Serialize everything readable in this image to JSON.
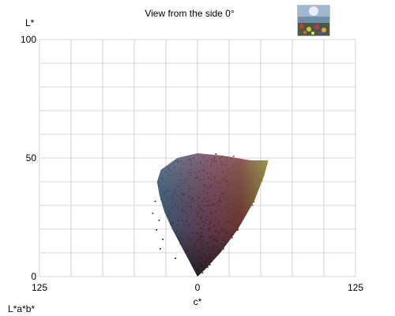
{
  "header": {
    "title": "View from the side 0°",
    "thumbnail_icon": "flower-field-photo-thumbnail"
  },
  "footer": {
    "color_space_label": "L*a*b*"
  },
  "chart_data": {
    "type": "scatter",
    "title": "View from the side 0°",
    "xlabel": "c*",
    "ylabel": "L*",
    "x_tick_labels": [
      "125",
      "0",
      "125"
    ],
    "y_tick_labels": [
      "100",
      "50",
      "0"
    ],
    "xlim": [
      -125,
      125
    ],
    "ylim": [
      0,
      100
    ],
    "grid": true,
    "colors": {
      "grid": "#d4d4d4",
      "blue_tone": "#3d5f7c",
      "red_tone": "#7e2a35",
      "olive_tone": "#7d7c2a",
      "dark_tone": "#201d22"
    },
    "series": [
      {
        "region": "gamut cloud outline",
        "points": [
          [
            0,
            0
          ],
          [
            -3,
            3
          ],
          [
            -10,
            10
          ],
          [
            -20,
            20
          ],
          [
            -26,
            27
          ],
          [
            -30,
            34
          ],
          [
            -32,
            40
          ],
          [
            -29,
            45
          ],
          [
            -16,
            50
          ],
          [
            0,
            52
          ],
          [
            20,
            51
          ],
          [
            42,
            49
          ],
          [
            56,
            49
          ],
          [
            53,
            43
          ],
          [
            45,
            32
          ],
          [
            32,
            20
          ],
          [
            18,
            10
          ],
          [
            6,
            3
          ],
          [
            0,
            0
          ]
        ]
      },
      {
        "region": "scattered outliers",
        "points": [
          [
            -36,
            27
          ],
          [
            -34,
            32
          ],
          [
            -33,
            20
          ],
          [
            -30,
            12
          ],
          [
            -28,
            16
          ],
          [
            -26,
            36
          ],
          [
            -24,
            43
          ],
          [
            -22,
            45
          ],
          [
            -31,
            24
          ],
          [
            -18,
            8
          ],
          [
            14,
            52
          ],
          [
            28,
            51
          ]
        ]
      }
    ]
  }
}
